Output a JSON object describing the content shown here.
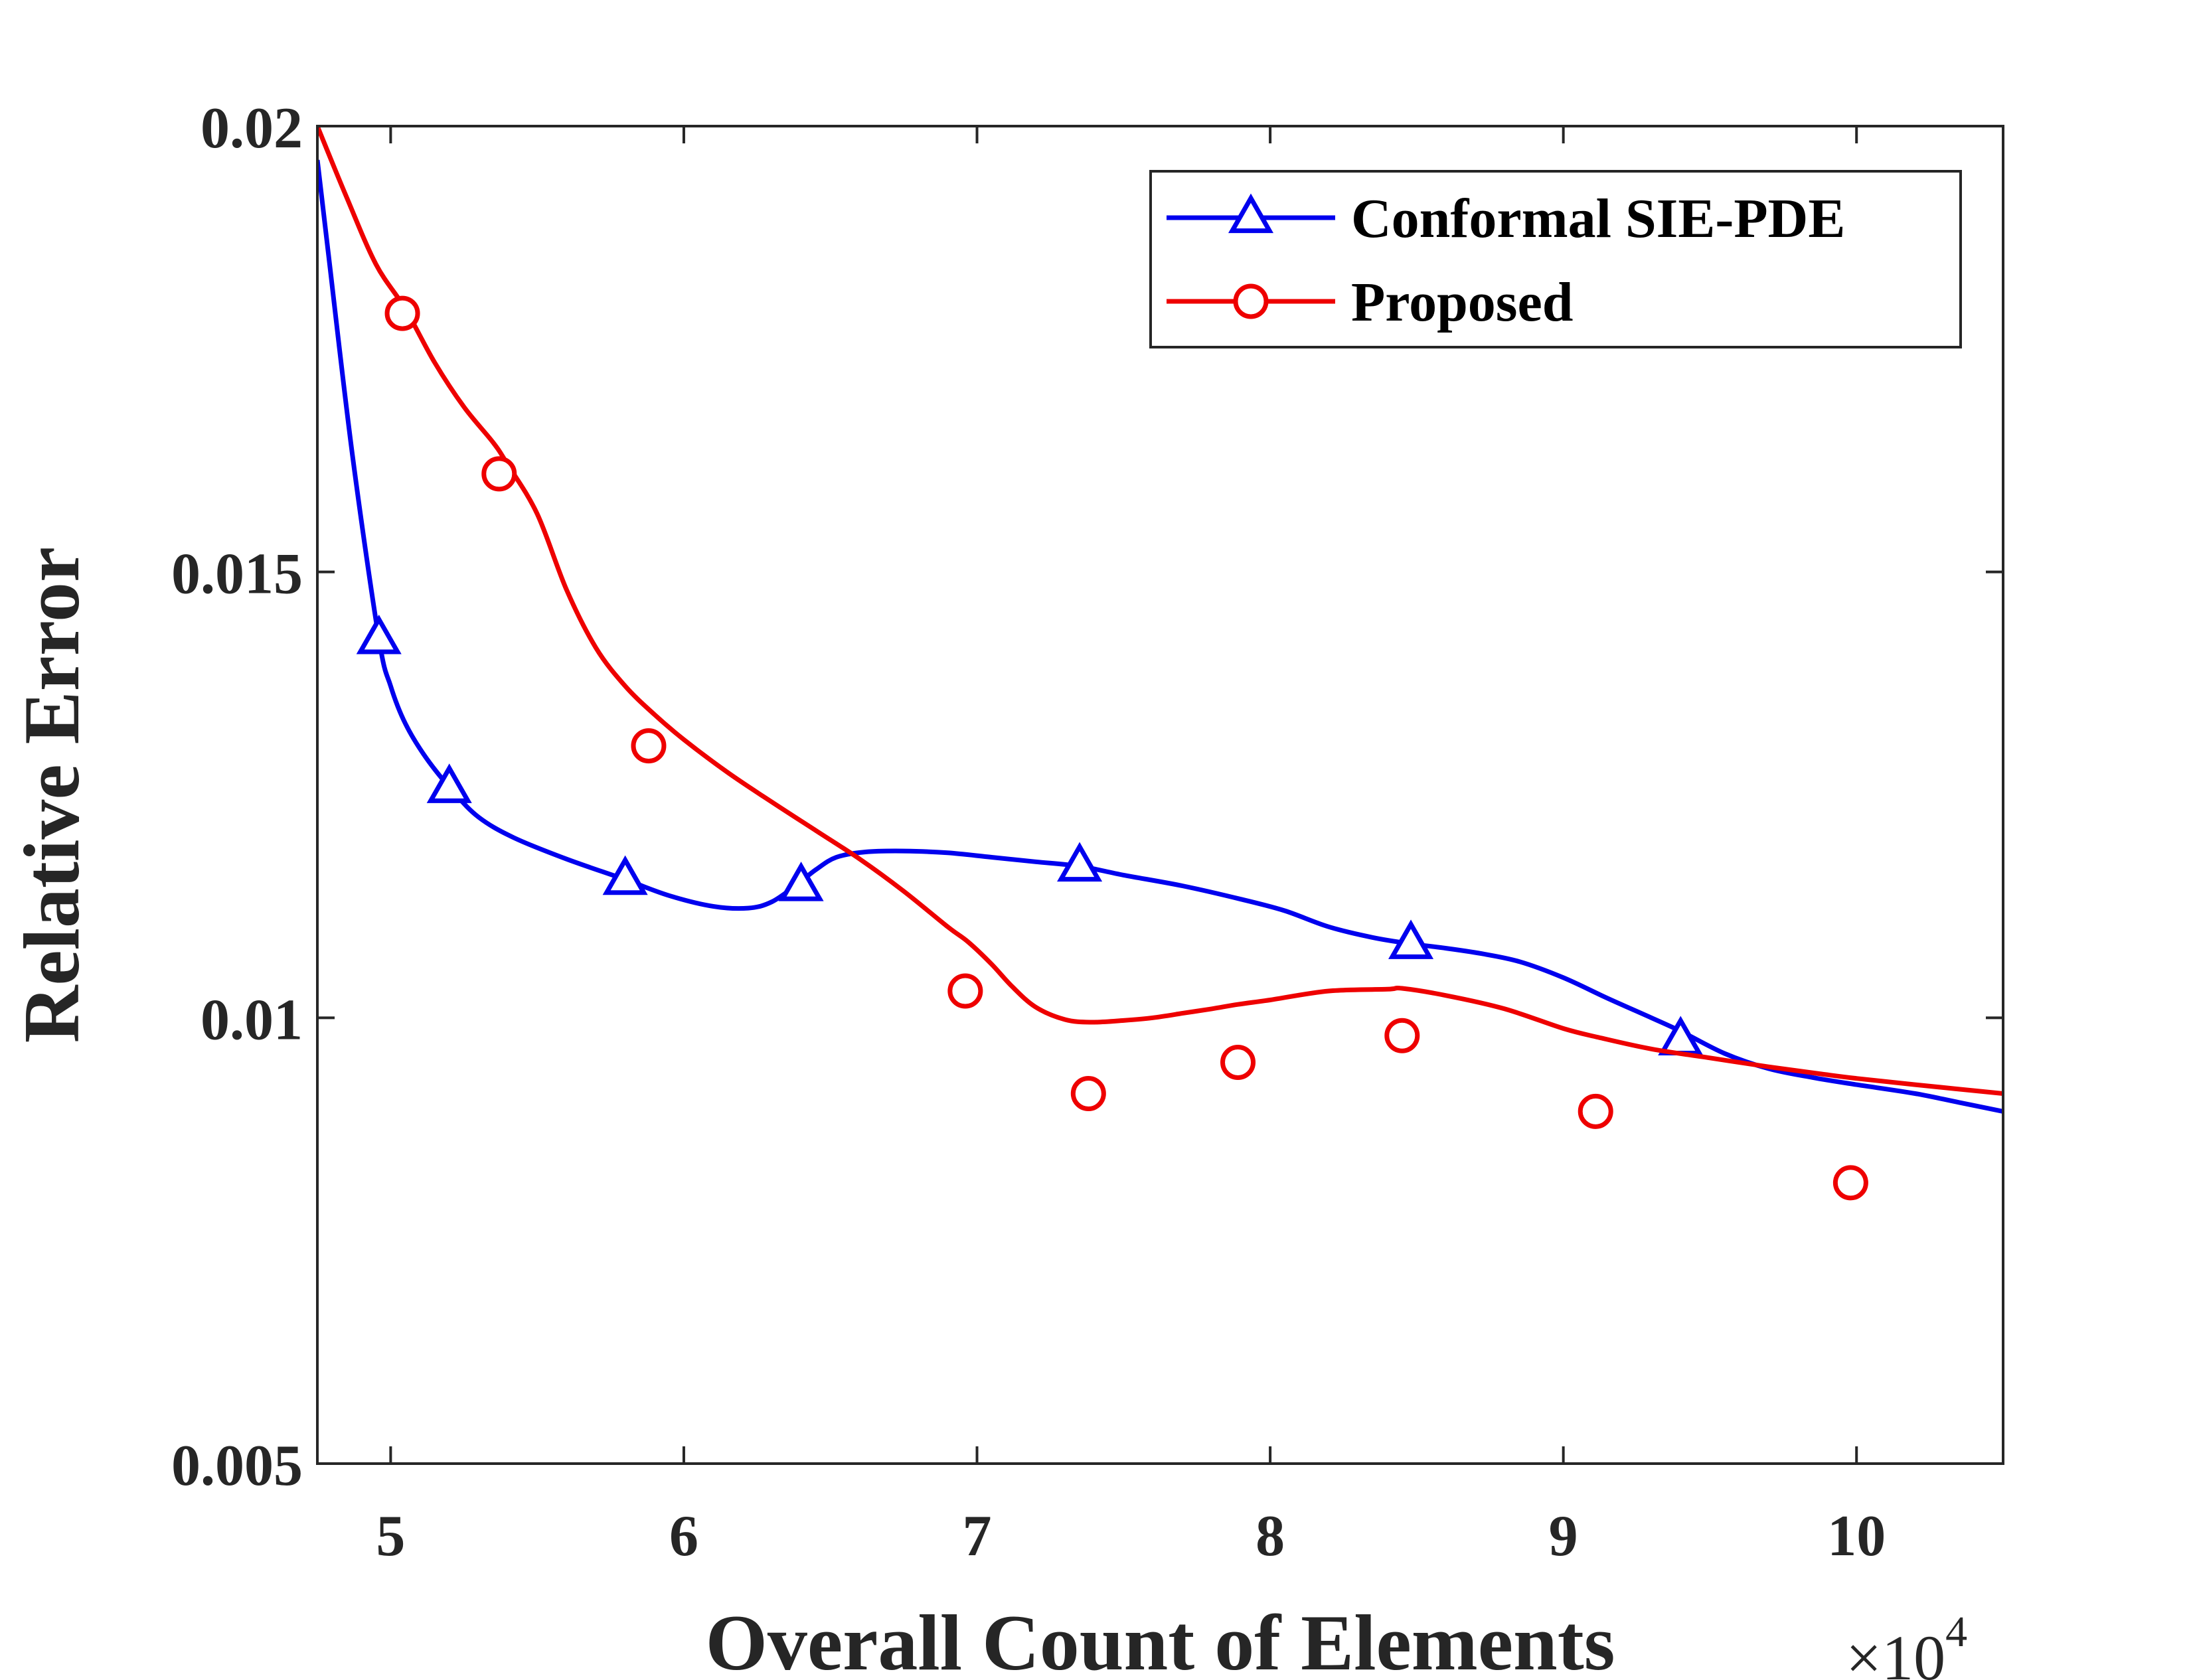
{
  "chart_data": {
    "type": "line",
    "xlabel": "Overall Count of Elements",
    "ylabel": "Relative Error",
    "x_multiplier": "×10",
    "x_multiplier_exponent": "4",
    "xlim": [
      4.75,
      10.5
    ],
    "ylim": [
      0.005,
      0.02
    ],
    "xticks": [
      5,
      6,
      7,
      8,
      9,
      10
    ],
    "xtick_labels": [
      "5",
      "6",
      "7",
      "8",
      "9",
      "10"
    ],
    "yticks": [
      0.005,
      0.01,
      0.015,
      0.02
    ],
    "ytick_labels": [
      "0.005",
      "0.01",
      "0.015",
      "0.02"
    ],
    "grid": false,
    "legend_position": "top-right",
    "series": [
      {
        "name": "Conformal SIE-PDE",
        "color": "#0000ee",
        "marker": "triangle",
        "curve_x": [
          4.75,
          4.79,
          4.87,
          4.96,
          5.0,
          5.05,
          5.12,
          5.21,
          5.3,
          5.42,
          5.6,
          5.8,
          5.95,
          6.1,
          6.22,
          6.3,
          6.38,
          6.45,
          6.52,
          6.62,
          6.75,
          6.9,
          7.05,
          7.2,
          7.35,
          7.5,
          7.7,
          7.9,
          8.05,
          8.2,
          8.35,
          8.48,
          8.6,
          8.72,
          8.85,
          9.0,
          9.15,
          9.3,
          9.4,
          9.55,
          9.7,
          9.85,
          10.0,
          10.2,
          10.35,
          10.5
        ],
        "curve_y": [
          0.01962,
          0.0185,
          0.0163,
          0.01425,
          0.01372,
          0.0133,
          0.01292,
          0.01255,
          0.01225,
          0.01202,
          0.01178,
          0.01155,
          0.01137,
          0.01125,
          0.01123,
          0.0113,
          0.01148,
          0.01166,
          0.0118,
          0.01186,
          0.01187,
          0.01185,
          0.0118,
          0.01175,
          0.0117,
          0.0116,
          0.01148,
          0.01133,
          0.0112,
          0.01102,
          0.0109,
          0.01083,
          0.01078,
          0.01072,
          0.01063,
          0.01045,
          0.01022,
          0.01,
          0.00985,
          0.0096,
          0.00943,
          0.00933,
          0.00925,
          0.00915,
          0.00905,
          0.00895
        ],
        "marker_x": [
          4.96,
          5.2,
          5.8,
          6.4,
          7.35,
          8.48,
          9.4
        ],
        "marker_y": [
          0.01425,
          0.01258,
          0.01155,
          0.01148,
          0.0117,
          0.01083,
          0.00975
        ]
      },
      {
        "name": "Proposed",
        "color": "#ee0000",
        "marker": "circle",
        "curve_x": [
          4.75,
          4.85,
          4.95,
          5.05,
          5.15,
          5.25,
          5.35,
          5.4,
          5.5,
          5.6,
          5.7,
          5.8,
          5.9,
          6.0,
          6.15,
          6.3,
          6.45,
          6.6,
          6.75,
          6.9,
          6.97,
          7.05,
          7.12,
          7.2,
          7.3,
          7.39,
          7.5,
          7.6,
          7.7,
          7.8,
          7.89,
          8.0,
          8.2,
          8.4,
          8.45,
          8.6,
          8.8,
          9.0,
          9.12,
          9.3,
          9.5,
          9.7,
          9.88,
          10.0,
          10.2,
          10.5
        ],
        "curve_y": [
          0.02,
          0.0192,
          0.01845,
          0.01795,
          0.01735,
          0.01685,
          0.01645,
          0.0162,
          0.01565,
          0.0148,
          0.01415,
          0.01372,
          0.0134,
          0.01312,
          0.01275,
          0.01242,
          0.0121,
          0.01178,
          0.01142,
          0.01102,
          0.01085,
          0.0106,
          0.01035,
          0.01012,
          0.00998,
          0.00995,
          0.00997,
          0.01,
          0.01005,
          0.0101,
          0.01015,
          0.0102,
          0.0103,
          0.01032,
          0.01033,
          0.01025,
          0.0101,
          0.00988,
          0.00978,
          0.00965,
          0.00955,
          0.00945,
          0.00937,
          0.00932,
          0.00925,
          0.00915
        ],
        "marker_x": [
          5.04,
          5.37,
          5.88,
          6.96,
          7.38,
          7.89,
          8.45,
          9.11,
          9.98
        ],
        "marker_y": [
          0.0179,
          0.0161,
          0.01305,
          0.0103,
          0.00915,
          0.0095,
          0.0098,
          0.00895,
          0.00815
        ]
      }
    ]
  }
}
